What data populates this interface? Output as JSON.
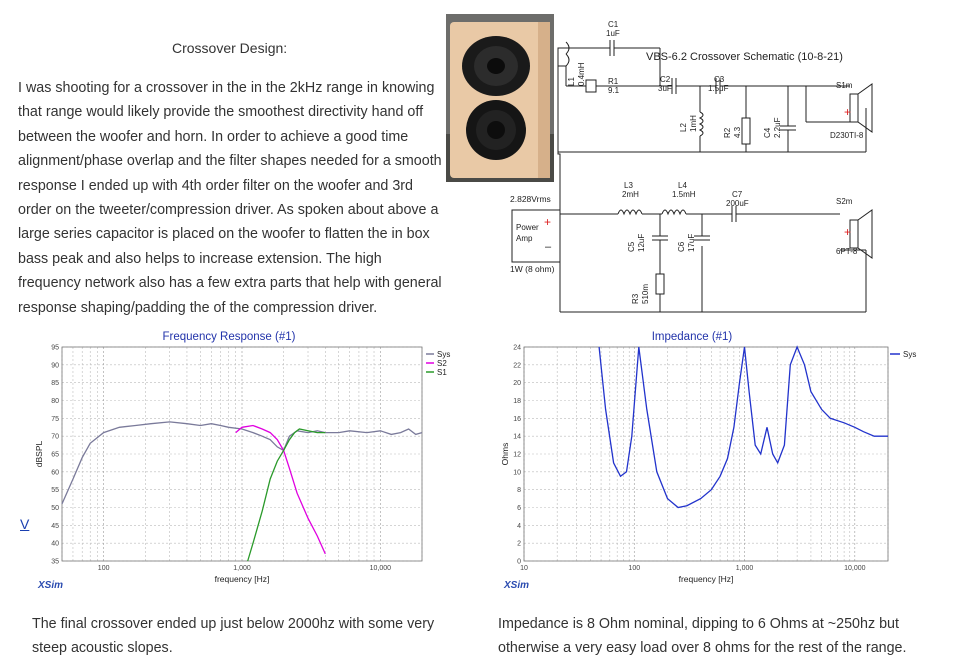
{
  "article": {
    "title": "Crossover Design:",
    "body": "I was shooting for a crossover in the in the 2kHz range in knowing that range would likely provide the smoothest directivity hand off between the woofer and horn.  In order to achieve a good time alignment/phase overlap and the filter shapes needed for a smooth response I ended up with 4th order filter on the woofer and 3rd order on the tweeter/compression driver.  As spoken about above a large series capacitor is placed on the woofer to flatten the in box bass peak and also helps to increase extension.  The high frequency network also has a few extra parts that help with general response shaping/padding the of the compression driver.",
    "caption_left": "The final crossover ended up just below 2000hz with some very steep acoustic slopes.",
    "caption_right": "Impedance is 8 Ohm nominal, dipping to 6 Ohms at ~250hz but otherwise a very easy load over 8 ohms for the rest of the range.",
    "stray_mark": "V"
  },
  "schematic": {
    "title": "VBS-6.2 Crossover Schematic (10-8-21)",
    "source_voltage": "2.828Vrms",
    "amp_label_1": "Power",
    "amp_label_2": "Amp",
    "amp_power": "1W (8 ohm)",
    "components": {
      "C1": [
        "C1",
        "1uF"
      ],
      "L1": [
        "L1",
        "0.4mH"
      ],
      "R1": [
        "R1",
        "9.1"
      ],
      "C2": [
        "C2",
        "3uF"
      ],
      "C3": [
        "C3",
        "1.5uF"
      ],
      "L2": [
        "L2",
        "1mH"
      ],
      "R2": [
        "R2",
        "4.3"
      ],
      "C4": [
        "C4",
        "2.2uF"
      ],
      "L3": [
        "L3",
        "2mH"
      ],
      "L4": [
        "L4",
        "1.5mH"
      ],
      "C7": [
        "C7",
        "200uF"
      ],
      "C5": [
        "C5",
        "12uF"
      ],
      "C6": [
        "C6",
        "17uF"
      ],
      "R3": [
        "R3",
        "510m"
      ]
    },
    "drivers": [
      {
        "id": "S1m",
        "model": "D230TI-8"
      },
      {
        "id": "S2m",
        "model": "6PT-8"
      }
    ],
    "plus_sign": "+",
    "minus_sign": "–"
  },
  "chart_data": [
    {
      "type": "line",
      "title": "Frequency Response (#1)",
      "xlabel": "frequency [Hz]",
      "ylabel": "dBSPL",
      "x_scale": "log",
      "xlim": [
        50,
        20000
      ],
      "ylim": [
        35,
        95
      ],
      "xticks": [
        100,
        1000,
        10000
      ],
      "xtick_labels": [
        "100",
        "1,000",
        "10,000"
      ],
      "yticks": [
        35,
        40,
        45,
        50,
        55,
        60,
        65,
        70,
        75,
        80,
        85,
        90,
        95
      ],
      "watermark": "XSim",
      "grid": true,
      "legend": "top-right",
      "series": [
        {
          "name": "Sys",
          "color": "#7a7a9a",
          "x": [
            50,
            60,
            70,
            80,
            100,
            130,
            170,
            220,
            300,
            400,
            500,
            600,
            700,
            800,
            1000,
            1200,
            1400,
            1600,
            1800,
            2000,
            2200,
            2500,
            3000,
            3500,
            4000,
            5000,
            6000,
            8000,
            10000,
            12000,
            14000,
            16000,
            18000,
            20000
          ],
          "y": [
            51,
            58,
            64,
            68,
            71,
            72.5,
            73,
            73.5,
            74,
            73.5,
            73,
            73.5,
            73,
            72.5,
            72,
            71,
            70,
            69,
            67,
            66,
            70,
            71.5,
            71,
            71.5,
            71,
            71,
            71.5,
            71,
            71.5,
            70.5,
            71,
            72,
            70.5,
            71
          ]
        },
        {
          "name": "S2",
          "color": "#e000e0",
          "x": [
            900,
            1000,
            1200,
            1400,
            1600,
            1800,
            2000,
            2200,
            2500,
            3000,
            3500,
            4000
          ],
          "y": [
            71,
            72.5,
            73,
            72,
            71,
            69,
            66,
            61,
            54,
            47,
            42,
            37
          ]
        },
        {
          "name": "S1",
          "color": "#2a9a2a",
          "x": [
            1100,
            1200,
            1400,
            1600,
            1800,
            2000,
            2200,
            2400,
            2600,
            3000,
            3500,
            4000
          ],
          "y": [
            35,
            40,
            49,
            58,
            63,
            66,
            69,
            71,
            72,
            71.5,
            71,
            71
          ]
        }
      ]
    },
    {
      "type": "line",
      "title": "Impedance (#1)",
      "ylabel": "Ohms",
      "xlabel": "frequency [Hz]",
      "x_scale": "log",
      "xlim": [
        10,
        20000
      ],
      "ylim": [
        0,
        24
      ],
      "xticks": [
        10,
        100,
        1000,
        10000
      ],
      "xtick_labels": [
        "10",
        "100",
        "1,000",
        "10,000"
      ],
      "yticks": [
        0,
        2,
        4,
        6,
        8,
        10,
        12,
        14,
        16,
        18,
        20,
        22,
        24
      ],
      "watermark": "XSim",
      "grid": true,
      "legend": "top-right",
      "series": [
        {
          "name": "Sys",
          "color": "#2233cc",
          "x": [
            48,
            55,
            65,
            75,
            85,
            95,
            110,
            130,
            160,
            200,
            250,
            300,
            400,
            500,
            600,
            700,
            800,
            900,
            1000,
            1100,
            1250,
            1400,
            1600,
            1800,
            2000,
            2300,
            2600,
            3000,
            3500,
            4000,
            5000,
            6000,
            8000,
            10000,
            12000,
            15000,
            20000
          ],
          "y": [
            24,
            17,
            11,
            9.5,
            10,
            14,
            24,
            17,
            10,
            7,
            6,
            6.2,
            7,
            8,
            9.5,
            11.5,
            15,
            20,
            24,
            19,
            13,
            12,
            15,
            12,
            11,
            13,
            22,
            24,
            22,
            19,
            17,
            16,
            15.5,
            15,
            14.5,
            14,
            14
          ]
        }
      ]
    }
  ]
}
